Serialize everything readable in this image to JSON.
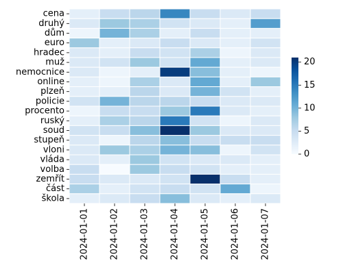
{
  "chart_data": {
    "type": "heatmap",
    "title": "",
    "xlabel": "",
    "ylabel": "",
    "x": [
      "2024-01-01",
      "2024-01-02",
      "2024-01-03",
      "2024-01-04",
      "2024-01-05",
      "2024-01-06",
      "2024-01-07"
    ],
    "y": [
      "cena",
      "druhý",
      "dům",
      "euro",
      "hradec",
      "muž",
      "nemocnice",
      "online",
      "plzeň",
      "policie",
      "procento",
      "ruský",
      "soud",
      "stupeň",
      "vloni",
      "vláda",
      "volba",
      "zemřít",
      "část",
      "škola"
    ],
    "values": [
      [
        2,
        5,
        6,
        14,
        5,
        3,
        5
      ],
      [
        3,
        8,
        7,
        4,
        3,
        2,
        12
      ],
      [
        1,
        10,
        7,
        2,
        5,
        2,
        2
      ],
      [
        8,
        2,
        3,
        5,
        3,
        2,
        4
      ],
      [
        3,
        2,
        5,
        4,
        7,
        1,
        3
      ],
      [
        3,
        4,
        8,
        4,
        11,
        2,
        3
      ],
      [
        3,
        1,
        2,
        20,
        9,
        2,
        1
      ],
      [
        2,
        1,
        7,
        3,
        11,
        2,
        8
      ],
      [
        2,
        2,
        6,
        3,
        10,
        4,
        2
      ],
      [
        4,
        10,
        6,
        6,
        5,
        3,
        3
      ],
      [
        1,
        5,
        5,
        8,
        15,
        3,
        2
      ],
      [
        2,
        7,
        6,
        15,
        4,
        1,
        3
      ],
      [
        4,
        5,
        9,
        21,
        8,
        3,
        3
      ],
      [
        3,
        1,
        6,
        9,
        5,
        5,
        5
      ],
      [
        3,
        8,
        7,
        10,
        9,
        1,
        4
      ],
      [
        3,
        2,
        8,
        4,
        3,
        3,
        2
      ],
      [
        5,
        0,
        8,
        5,
        4,
        2,
        2
      ],
      [
        5,
        3,
        3,
        4,
        21,
        5,
        2
      ],
      [
        7,
        2,
        4,
        5,
        4,
        11,
        1
      ],
      [
        2,
        3,
        5,
        9,
        3,
        2,
        3
      ]
    ],
    "vmin": 0,
    "vmax": 21,
    "colorbar_ticks": [
      0,
      5,
      10,
      15,
      20
    ],
    "colormap": "Blues",
    "colormap_stops": [
      "#f7fbff",
      "#deebf7",
      "#c6dbef",
      "#9ecae1",
      "#6baed6",
      "#4292c6",
      "#2171b5",
      "#08519c",
      "#08306b"
    ],
    "cell_border_color": "#ffffff",
    "grid": false
  }
}
